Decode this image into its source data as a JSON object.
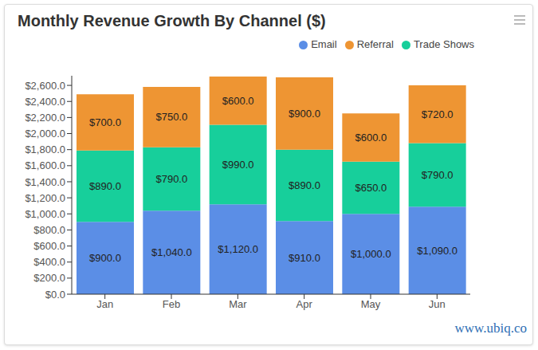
{
  "chart_data": {
    "type": "bar",
    "title": "Monthly Revenue Growth By Channel ($)",
    "annotation": "www.ubiq.co",
    "categories": [
      "Jan",
      "Feb",
      "Mar",
      "Apr",
      "May",
      "Jun"
    ],
    "series": [
      {
        "name": "Email",
        "color": "#5b8ee6",
        "values": [
          900,
          1040,
          1120,
          910,
          1000,
          1090
        ],
        "value_labels": [
          "$900.0",
          "$1,040.0",
          "$1,120.0",
          "$910.0",
          "$1,000.0",
          "$1,090.0"
        ]
      },
      {
        "name": "Trade Shows",
        "color": "#17cf9b",
        "values": [
          890,
          790,
          990,
          890,
          650,
          790
        ],
        "value_labels": [
          "$890.0",
          "$790.0",
          "$990.0",
          "$890.0",
          "$650.0",
          "$790.0"
        ]
      },
      {
        "name": "Referral",
        "color": "#ee9533",
        "values": [
          700,
          750,
          600,
          900,
          600,
          720
        ],
        "value_labels": [
          "$700.0",
          "$750.0",
          "$600.0",
          "$900.0",
          "$600.0",
          "$720.0"
        ]
      }
    ],
    "ylim": [
      0,
      2720
    ],
    "yticks": [
      {
        "value": 0,
        "label": "$0.0"
      },
      {
        "value": 200,
        "label": "$200.0"
      },
      {
        "value": 400,
        "label": "$400.0"
      },
      {
        "value": 600,
        "label": "$600.0"
      },
      {
        "value": 800,
        "label": "$800.0"
      },
      {
        "value": 1000,
        "label": "$1,000.0"
      },
      {
        "value": 1200,
        "label": "$1,200.0"
      },
      {
        "value": 1400,
        "label": "$1,400.0"
      },
      {
        "value": 1600,
        "label": "$1,600.0"
      },
      {
        "value": 1800,
        "label": "$1,800.0"
      },
      {
        "value": 2000,
        "label": "$2,000.0"
      },
      {
        "value": 2200,
        "label": "$2,200.0"
      },
      {
        "value": 2400,
        "label": "$2,400.0"
      },
      {
        "value": 2600,
        "label": "$2,600.0"
      }
    ],
    "stacked": true,
    "data_labels": true,
    "legend": "top-right",
    "grid": false
  }
}
